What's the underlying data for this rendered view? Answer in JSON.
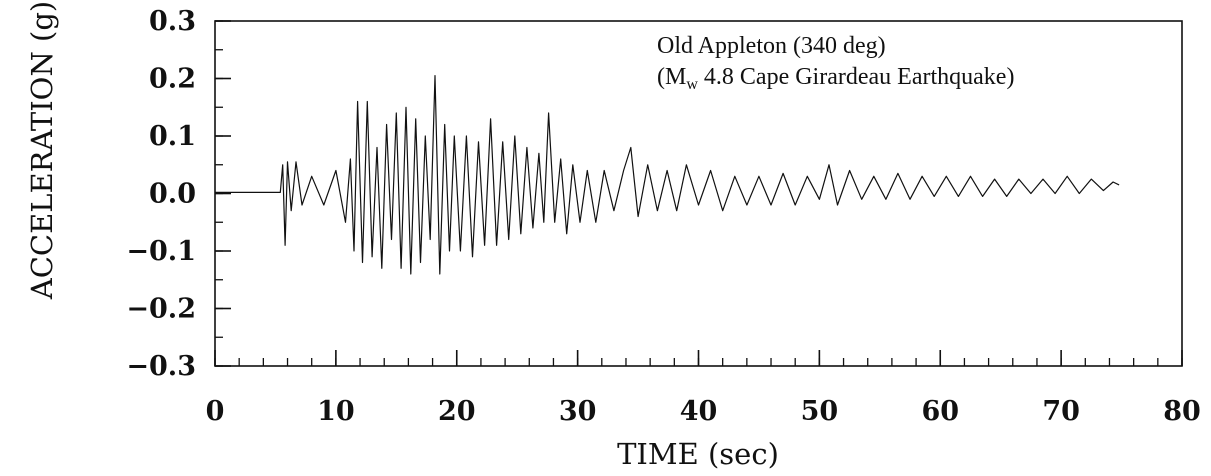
{
  "chart_data": {
    "type": "line",
    "title": "",
    "xlabel": "TIME  (sec)",
    "ylabel": "ACCELERATION  (g)",
    "xlim": [
      0,
      80
    ],
    "ylim": [
      -0.3,
      0.3
    ],
    "x_ticks": [
      0,
      10,
      20,
      30,
      40,
      50,
      60,
      70,
      80
    ],
    "x_tick_labels": [
      "0",
      "10",
      "20",
      "30",
      "40",
      "50",
      "60",
      "70",
      "80"
    ],
    "y_ticks": [
      0.3,
      0.2,
      0.1,
      0.0,
      -0.1,
      -0.2,
      -0.3
    ],
    "y_tick_labels": [
      "0.3",
      "0.2",
      "0.1",
      "0.0",
      "−0.1",
      "−0.2",
      "−0.3"
    ],
    "x_minor_step": 2,
    "y_minor_step": 0.05,
    "grid": false,
    "annotation": {
      "line1": "Old Appleton (340 deg)",
      "line2_prefix": "(M",
      "line2_sub": "w",
      "line2_rest": " 4.8 Cape Girardeau Earthquake)"
    },
    "series": [
      {
        "x": [
          0,
          5.4,
          5.6,
          5.8,
          6.0,
          6.3,
          6.7,
          7.2,
          8.0,
          9.0,
          10.0,
          10.8,
          11.2,
          11.5,
          11.8,
          12.2,
          12.6,
          13.0,
          13.4,
          13.8,
          14.2,
          14.6,
          15.0,
          15.4,
          15.8,
          16.2,
          16.6,
          17.0,
          17.4,
          17.8,
          18.2,
          18.6,
          19.0,
          19.4,
          19.8,
          20.3,
          20.8,
          21.3,
          21.8,
          22.3,
          22.8,
          23.3,
          23.8,
          24.3,
          24.8,
          25.3,
          25.8,
          26.3,
          26.8,
          27.2,
          27.6,
          28.1,
          28.6,
          29.1,
          29.6,
          30.2,
          30.8,
          31.5,
          32.2,
          33.0,
          33.8,
          34.4,
          35.0,
          35.8,
          36.6,
          37.4,
          38.2,
          39.0,
          40.0,
          41.0,
          42.0,
          43.0,
          44.0,
          45.0,
          46.0,
          47.0,
          48.0,
          49.0,
          50.0,
          50.8,
          51.5,
          52.5,
          53.5,
          54.5,
          55.5,
          56.5,
          57.5,
          58.5,
          59.5,
          60.5,
          61.5,
          62.5,
          63.5,
          64.5,
          65.5,
          66.5,
          67.5,
          68.5,
          69.5,
          70.5,
          71.5,
          72.5,
          73.5,
          74.3,
          74.8
        ],
        "y": [
          0.002,
          0.002,
          0.05,
          -0.09,
          0.055,
          -0.03,
          0.055,
          -0.02,
          0.03,
          -0.02,
          0.04,
          -0.05,
          0.06,
          -0.1,
          0.16,
          -0.12,
          0.16,
          -0.11,
          0.08,
          -0.13,
          0.12,
          -0.08,
          0.14,
          -0.13,
          0.15,
          -0.14,
          0.13,
          -0.12,
          0.1,
          -0.08,
          0.205,
          -0.14,
          0.12,
          -0.1,
          0.1,
          -0.1,
          0.1,
          -0.11,
          0.09,
          -0.09,
          0.13,
          -0.09,
          0.09,
          -0.08,
          0.1,
          -0.07,
          0.08,
          -0.06,
          0.07,
          -0.05,
          0.14,
          -0.05,
          0.06,
          -0.07,
          0.05,
          -0.05,
          0.04,
          -0.05,
          0.04,
          -0.03,
          0.04,
          0.08,
          -0.04,
          0.05,
          -0.03,
          0.04,
          -0.03,
          0.05,
          -0.02,
          0.04,
          -0.03,
          0.03,
          -0.02,
          0.03,
          -0.02,
          0.035,
          -0.02,
          0.03,
          -0.01,
          0.05,
          -0.02,
          0.04,
          -0.01,
          0.03,
          -0.01,
          0.035,
          -0.01,
          0.03,
          -0.005,
          0.03,
          -0.005,
          0.03,
          -0.005,
          0.025,
          -0.005,
          0.025,
          0.0,
          0.025,
          0.0,
          0.03,
          0.0,
          0.025,
          0.005,
          0.02,
          0.015
        ]
      }
    ]
  }
}
